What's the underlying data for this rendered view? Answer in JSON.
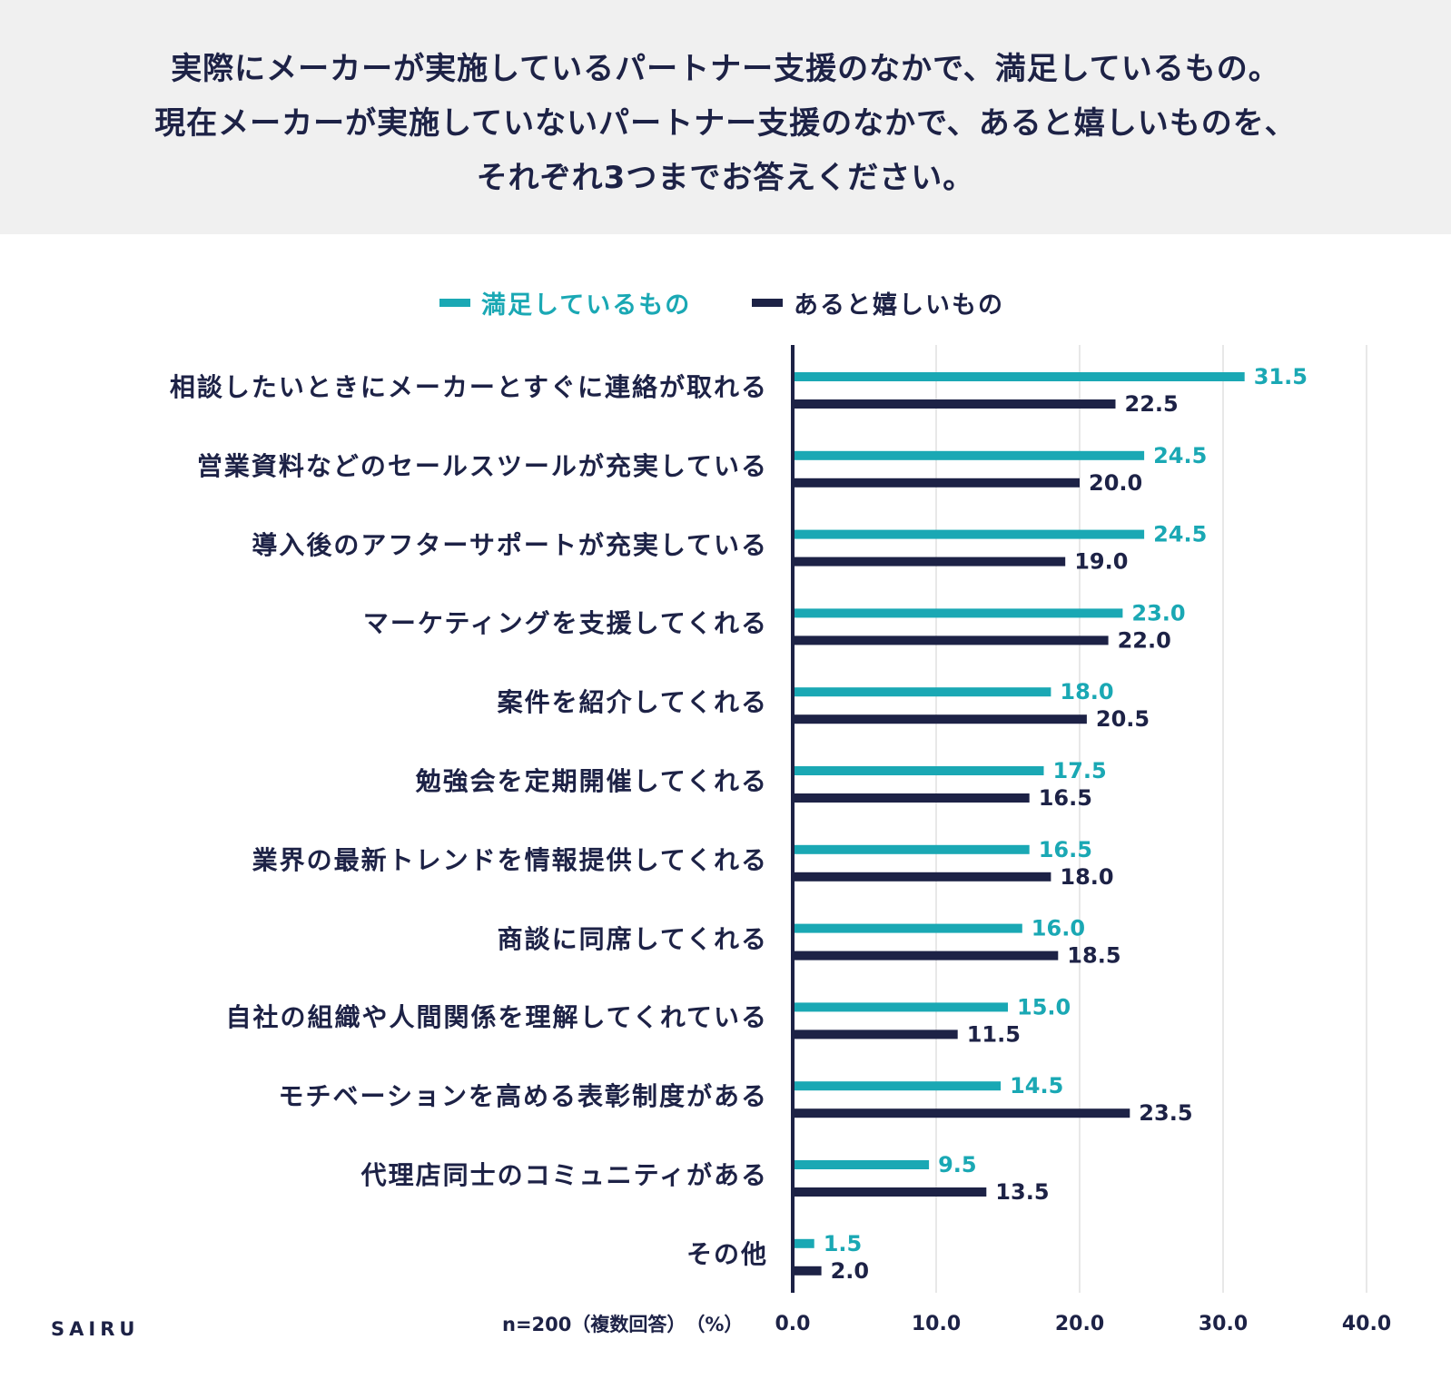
{
  "title": {
    "line1": "実際にメーカーが実施しているパートナー支援のなかで、満足しているもの。",
    "line2": "現在メーカーが実施していないパートナー支援のなかで、あると嬉しいものを、",
    "line3": "それぞれ3つまでお答えください。"
  },
  "colors": {
    "satisfied": "#1aa8b4",
    "wanted": "#1d2246",
    "grid": "#d0d0d0",
    "title_bg": "#f0f0f0"
  },
  "footer": {
    "note": "n=200（複数回答）　（%）",
    "brand": "SAIRU"
  },
  "chart_data": {
    "type": "bar",
    "orientation": "horizontal",
    "legend_position": "top-center",
    "grid": true,
    "xlim": [
      0,
      40
    ],
    "xticks": [
      "0.0",
      "10.0",
      "20.0",
      "30.0",
      "40.0"
    ],
    "xticks_values": [
      0,
      10,
      20,
      30,
      40
    ],
    "categories": [
      "相談したいときにメーカーとすぐに連絡が取れる",
      "営業資料などのセールスツールが充実している",
      "導入後のアフターサポートが充実している",
      "マーケティングを支援してくれる",
      "案件を紹介してくれる",
      "勉強会を定期開催してくれる",
      "業界の最新トレンドを情報提供してくれる",
      "商談に同席してくれる",
      "自社の組織や人間関係を理解してくれている",
      "モチベーションを高める表彰制度がある",
      "代理店同士のコミュニティがある",
      "その他"
    ],
    "series": [
      {
        "name": "満足しているもの",
        "values": [
          31.5,
          24.5,
          24.5,
          23.0,
          18.0,
          17.5,
          16.5,
          16.0,
          15.0,
          14.5,
          9.5,
          1.5
        ],
        "labels": [
          "31.5",
          "24.5",
          "24.5",
          "23.0",
          "18.0",
          "17.5",
          "16.5",
          "16.0",
          "15.0",
          "14.5",
          "9.5",
          "1.5"
        ]
      },
      {
        "name": "あると嬉しいもの",
        "values": [
          22.5,
          20.0,
          19.0,
          22.0,
          20.5,
          16.5,
          18.0,
          18.5,
          11.5,
          23.5,
          13.5,
          2.0
        ],
        "labels": [
          "22.5",
          "20.0",
          "19.0",
          "22.0",
          "20.5",
          "16.5",
          "18.0",
          "18.5",
          "11.5",
          "23.5",
          "13.5",
          "2.0"
        ]
      }
    ]
  }
}
